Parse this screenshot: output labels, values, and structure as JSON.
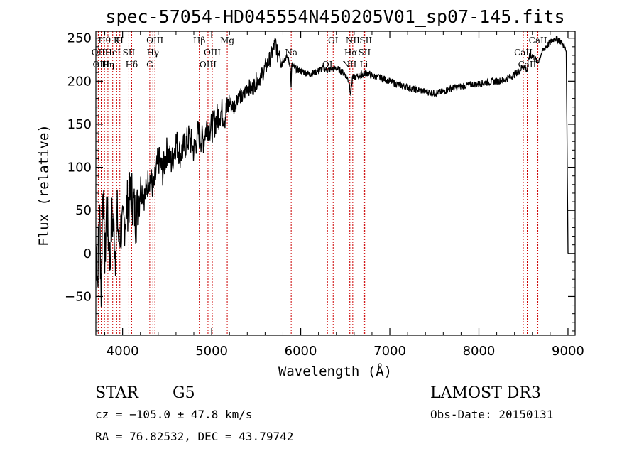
{
  "chart_data": {
    "type": "line",
    "title": "spec-57054-HD045554N450205V01_sp07-145.fits",
    "xlabel": "Wavelength (Å)",
    "ylabel": "Flux (relative)",
    "xlim": [
      3700,
      9080
    ],
    "ylim": [
      -95,
      258
    ],
    "x_ticks": [
      4000,
      5000,
      6000,
      7000,
      8000,
      9000
    ],
    "y_ticks": [
      -50,
      0,
      50,
      100,
      150,
      200,
      250
    ],
    "series": [
      {
        "name": "flux",
        "x": [
          3700,
          3720,
          3740,
          3760,
          3780,
          3800,
          3820,
          3840,
          3860,
          3880,
          3900,
          3920,
          3940,
          3960,
          3980,
          4000,
          4050,
          4100,
          4150,
          4200,
          4250,
          4300,
          4350,
          4400,
          4450,
          4500,
          4550,
          4600,
          4650,
          4700,
          4750,
          4800,
          4850,
          4900,
          4950,
          5000,
          5050,
          5100,
          5150,
          5200,
          5250,
          5300,
          5350,
          5400,
          5450,
          5500,
          5550,
          5600,
          5650,
          5700,
          5720,
          5740,
          5760,
          5780,
          5800,
          5850,
          5880,
          5892,
          5900,
          5950,
          6000,
          6050,
          6100,
          6150,
          6200,
          6250,
          6300,
          6350,
          6400,
          6450,
          6500,
          6540,
          6563,
          6580,
          6600,
          6650,
          6700,
          6750,
          6800,
          6850,
          6900,
          6950,
          7000,
          7100,
          7200,
          7300,
          7400,
          7500,
          7600,
          7700,
          7800,
          7900,
          8000,
          8100,
          8200,
          8300,
          8400,
          8450,
          8500,
          8542,
          8560,
          8600,
          8662,
          8700,
          8750,
          8800,
          8850,
          8900,
          8950,
          8980,
          9000
        ],
        "values": [
          10,
          -30,
          60,
          -45,
          90,
          -20,
          55,
          20,
          -10,
          40,
          30,
          0,
          45,
          10,
          30,
          25,
          55,
          70,
          40,
          80,
          65,
          90,
          75,
          110,
          95,
          120,
          105,
          130,
          115,
          125,
          135,
          120,
          140,
          130,
          150,
          145,
          155,
          165,
          160,
          175,
          170,
          185,
          180,
          195,
          190,
          200,
          205,
          215,
          225,
          240,
          245,
          230,
          238,
          222,
          225,
          228,
          220,
          195,
          218,
          214,
          212,
          210,
          208,
          210,
          212,
          215,
          213,
          214,
          215,
          212,
          208,
          200,
          185,
          205,
          204,
          206,
          208,
          210,
          206,
          205,
          204,
          202,
          200,
          196,
          193,
          190,
          188,
          186,
          188,
          192,
          194,
          196,
          197,
          199,
          200,
          202,
          208,
          212,
          218,
          212,
          228,
          230,
          222,
          232,
          240,
          245,
          250,
          248,
          242,
          235,
          0
        ]
      }
    ],
    "spectral_lines": [
      {
        "name": "Hθ",
        "x": 3797
      },
      {
        "name": "OII",
        "x": 3727
      },
      {
        "name": "OIII",
        "x": 3760
      },
      {
        "name": "K",
        "x": 3934
      },
      {
        "name": "HeI",
        "x": 3889
      },
      {
        "name": "Hη",
        "x": 3835
      },
      {
        "name": "H",
        "x": 3969
      },
      {
        "name": "SII",
        "x": 4070
      },
      {
        "name": "Hδ",
        "x": 4102
      },
      {
        "name": "OIII",
        "x": 4363
      },
      {
        "name": "Hγ",
        "x": 4340
      },
      {
        "name": "G",
        "x": 4305
      },
      {
        "name": "Hβ",
        "x": 4861
      },
      {
        "name": "OIII",
        "x": 5007
      },
      {
        "name": "OIII",
        "x": 4959
      },
      {
        "name": "Mg",
        "x": 5175
      },
      {
        "name": "Na",
        "x": 5893
      },
      {
        "name": "OI",
        "x": 6300
      },
      {
        "name": "OI",
        "x": 6364
      },
      {
        "name": "Hα",
        "x": 6563
      },
      {
        "name": "NII",
        "x": 6548
      },
      {
        "name": "NII",
        "x": 6584
      },
      {
        "name": "SII",
        "x": 6716
      },
      {
        "name": "Li",
        "x": 6708
      },
      {
        "name": "SII",
        "x": 6731
      },
      {
        "name": "CaII",
        "x": 8498
      },
      {
        "name": "CaII",
        "x": 8542
      },
      {
        "name": "CaII",
        "x": 8662
      }
    ]
  },
  "info": {
    "object_class": "STAR",
    "subclass": "G5",
    "survey": "LAMOST DR3",
    "cz": "cz = −105.0 ± 47.8 km/s",
    "obs_date": "Obs-Date: 20150131",
    "coords": "RA =  76.82532, DEC =  43.79742"
  },
  "colors": {
    "axis": "#000000",
    "spectrum": "#000000",
    "line_marker": "#cc0000"
  }
}
